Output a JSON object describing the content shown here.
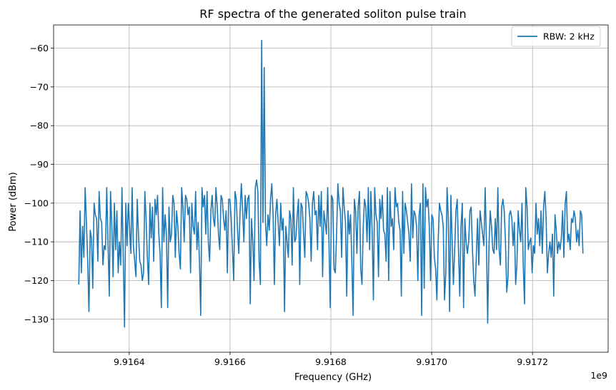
{
  "chart_data": {
    "type": "line",
    "title": "RF spectra of the generated soliton pulse train",
    "xlabel": "Frequency (GHz)",
    "ylabel": "Power (dBm)",
    "x_offset_text": "1e9",
    "xlim": [
      9.91625,
      9.91735
    ],
    "ylim": [
      -138.5,
      -54
    ],
    "x_ticks": [
      9.9164,
      9.9166,
      9.9168,
      9.917,
      9.9172
    ],
    "x_tick_labels": [
      "9.9164",
      "9.9166",
      "9.9168",
      "9.9170",
      "9.9172"
    ],
    "y_ticks": [
      -130,
      -120,
      -110,
      -100,
      -90,
      -80,
      -70,
      -60
    ],
    "y_tick_labels": [
      "−130",
      "−120",
      "−110",
      "−100",
      "−90",
      "−80",
      "−70",
      "−60"
    ],
    "grid": true,
    "legend_position": "top-right",
    "series": [
      {
        "name": "RBW: 2 kHz",
        "color": "#1f77b4",
        "x_start": 9.9163,
        "x_end": 9.9173,
        "values": [
          -121,
          -102,
          -118,
          -106,
          -114,
          -96,
          -105,
          -115,
          -128,
          -107,
          -109,
          -122,
          -100,
          -103,
          -104,
          -115,
          -97,
          -104,
          -105,
          -116,
          -111,
          -112,
          -96,
          -110,
          -124,
          -97,
          -106,
          -119,
          -100,
          -112,
          -102,
          -118,
          -110,
          -116,
          -96,
          -114,
          -132,
          -100,
          -111,
          -100,
          -106,
          -113,
          -96,
          -111,
          -115,
          -119,
          -99,
          -108,
          -115,
          -116,
          -120,
          -118,
          -97,
          -104,
          -114,
          -121,
          -100,
          -109,
          -101,
          -115,
          -99,
          -103,
          -98,
          -108,
          -113,
          -127,
          -96,
          -110,
          -103,
          -108,
          -127,
          -101,
          -110,
          -108,
          -98,
          -100,
          -114,
          -102,
          -106,
          -113,
          -117,
          -96,
          -101,
          -110,
          -98,
          -99,
          -103,
          -101,
          -118,
          -100,
          -106,
          -108,
          -97,
          -112,
          -105,
          -115,
          -129,
          -96,
          -101,
          -98,
          -108,
          -97,
          -110,
          -115,
          -102,
          -98,
          -104,
          -106,
          -96,
          -101,
          -108,
          -112,
          -98,
          -99,
          -104,
          -107,
          -102,
          -118,
          -99,
          -99,
          -104,
          -112,
          -120,
          -97,
          -99,
          -107,
          -113,
          -102,
          -95,
          -102,
          -110,
          -98,
          -104,
          -99,
          -98,
          -126,
          -104,
          -110,
          -120,
          -96,
          -94,
          -97,
          -115,
          -121,
          -58,
          -105,
          -65,
          -105,
          -111,
          -103,
          -107,
          -99,
          -95,
          -103,
          -121,
          -103,
          -99,
          -105,
          -111,
          -100,
          -107,
          -104,
          -128,
          -106,
          -110,
          -114,
          -102,
          -104,
          -116,
          -96,
          -110,
          -109,
          -103,
          -99,
          -121,
          -100,
          -101,
          -108,
          -114,
          -97,
          -98,
          -100,
          -104,
          -115,
          -100,
          -97,
          -103,
          -102,
          -112,
          -98,
          -106,
          -97,
          -119,
          -102,
          -105,
          -108,
          -96,
          -110,
          -127,
          -98,
          -99,
          -117,
          -118,
          -108,
          -95,
          -100,
          -102,
          -114,
          -96,
          -101,
          -105,
          -124,
          -102,
          -108,
          -103,
          -115,
          -129,
          -99,
          -102,
          -113,
          -101,
          -97,
          -117,
          -121,
          -106,
          -99,
          -101,
          -110,
          -96,
          -112,
          -97,
          -107,
          -125,
          -96,
          -103,
          -105,
          -119,
          -99,
          -104,
          -98,
          -107,
          -108,
          -115,
          -96,
          -120,
          -97,
          -106,
          -104,
          -112,
          -96,
          -101,
          -100,
          -105,
          -107,
          -124,
          -97,
          -113,
          -100,
          -102,
          -105,
          -108,
          -115,
          -95,
          -109,
          -102,
          -103,
          -106,
          -120,
          -103,
          -100,
          -129,
          -95,
          -122,
          -96,
          -101,
          -99,
          -106,
          -120,
          -103,
          -104,
          -114,
          -117,
          -125,
          -110,
          -100,
          -102,
          -103,
          -106,
          -125,
          -118,
          -96,
          -104,
          -128,
          -98,
          -110,
          -121,
          -112,
          -102,
          -99,
          -112,
          -124,
          -106,
          -100,
          -127,
          -104,
          -110,
          -113,
          -110,
          -102,
          -101,
          -112,
          -120,
          -124,
          -114,
          -104,
          -116,
          -102,
          -105,
          -108,
          -111,
          -96,
          -110,
          -131,
          -111,
          -102,
          -106,
          -112,
          -113,
          -104,
          -112,
          -96,
          -112,
          -116,
          -101,
          -99,
          -102,
          -110,
          -123,
          -119,
          -103,
          -102,
          -104,
          -111,
          -105,
          -121,
          -116,
          -102,
          -107,
          -110,
          -100,
          -116,
          -126,
          -96,
          -101,
          -112,
          -110,
          -109,
          -118,
          -111,
          -113,
          -100,
          -108,
          -104,
          -111,
          -102,
          -113,
          -101,
          -97,
          -104,
          -118,
          -113,
          -110,
          -114,
          -108,
          -124,
          -103,
          -107,
          -113,
          -110,
          -112,
          -109,
          -102,
          -114,
          -100,
          -97,
          -110,
          -108,
          -112,
          -104,
          -105,
          -102,
          -104,
          -110,
          -107,
          -111,
          -102,
          -103,
          -113
        ]
      }
    ]
  }
}
